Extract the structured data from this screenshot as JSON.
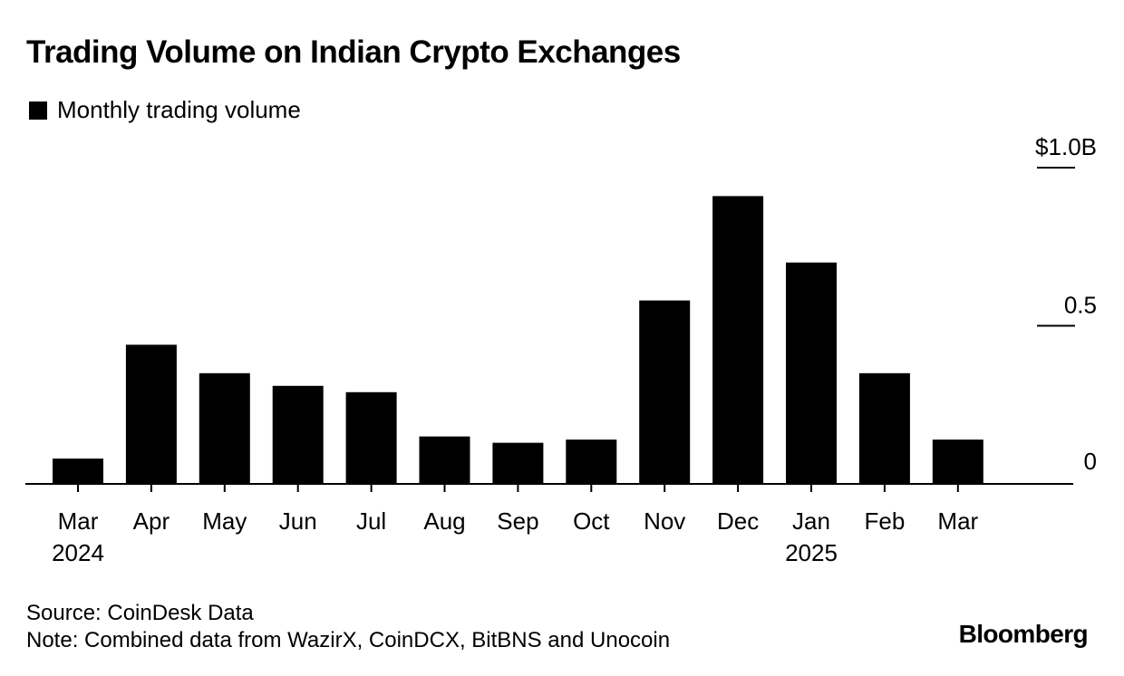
{
  "chart_data": {
    "type": "bar",
    "title": "Trading Volume on Indian Crypto Exchanges",
    "legend": [
      {
        "name": "Monthly trading volume",
        "color": "#000000"
      }
    ],
    "legend_position": "top-left",
    "categories": [
      "Mar",
      "Apr",
      "May",
      "Jun",
      "Jul",
      "Aug",
      "Sep",
      "Oct",
      "Nov",
      "Dec",
      "Jan",
      "Feb",
      "Mar"
    ],
    "year_labels": [
      "2024",
      "",
      "",
      "",
      "",
      "",
      "",
      "",
      "",
      "",
      "2025",
      "",
      ""
    ],
    "series": [
      {
        "name": "Monthly trading volume",
        "values": [
          0.08,
          0.44,
          0.35,
          0.31,
          0.29,
          0.15,
          0.13,
          0.14,
          0.58,
          0.91,
          0.7,
          0.35,
          0.14
        ]
      }
    ],
    "ylim": [
      0,
      1.0
    ],
    "yticks": [
      {
        "value": 0,
        "label": "0"
      },
      {
        "value": 0.5,
        "label": "0.5"
      },
      {
        "value": 1.0,
        "label": "$1.0B"
      }
    ],
    "yaxis_side": "right",
    "xlabel": "",
    "ylabel": "",
    "grid": false,
    "bar_color": "#000000"
  },
  "footer": {
    "source": "Source: CoinDesk Data",
    "note": "Note: Combined data from WazirX, CoinDCX, BitBNS and Unocoin",
    "brand": "Bloomberg"
  }
}
